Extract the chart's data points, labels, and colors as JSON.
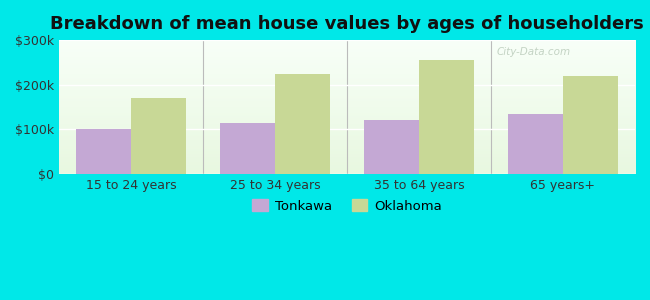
{
  "title": "Breakdown of mean house values by ages of householders",
  "categories": [
    "15 to 24 years",
    "25 to 34 years",
    "35 to 64 years",
    "65 years+"
  ],
  "tonkawa_values": [
    100000,
    113000,
    120000,
    135000
  ],
  "oklahoma_values": [
    170000,
    225000,
    255000,
    220000
  ],
  "tonkawa_color": "#c4a8d4",
  "oklahoma_color": "#c8d896",
  "background_color": "#00e8e8",
  "ylim": [
    0,
    300000
  ],
  "yticks": [
    0,
    100000,
    200000,
    300000
  ],
  "ytick_labels": [
    "$0",
    "$100k",
    "$200k",
    "$300k"
  ],
  "legend_tonkawa": "Tonkawa",
  "legend_oklahoma": "Oklahoma",
  "title_fontsize": 13,
  "bar_width": 0.38,
  "watermark": "City-Data.com"
}
